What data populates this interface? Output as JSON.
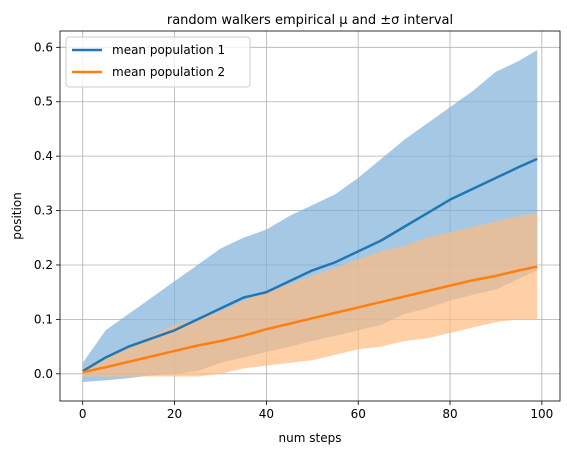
{
  "chart_data": {
    "type": "line",
    "title": "random walkers empirical μ and ±σ interval",
    "xlabel": "num steps",
    "ylabel": "position",
    "xlim": [
      -4.95,
      103.95
    ],
    "ylim": [
      -0.05,
      0.63
    ],
    "xticks": [
      0,
      20,
      40,
      60,
      80,
      100
    ],
    "yticks": [
      0.0,
      0.1,
      0.2,
      0.3,
      0.4,
      0.5,
      0.6
    ],
    "xtick_labels": [
      "0",
      "20",
      "40",
      "60",
      "80",
      "100"
    ],
    "ytick_labels": [
      "0.0",
      "0.1",
      "0.2",
      "0.3",
      "0.4",
      "0.5",
      "0.6"
    ],
    "grid": true,
    "legend_position": "top-left",
    "series": [
      {
        "name": "mean population 1",
        "color": "#1f77b4",
        "band_color": "#7fb0d8",
        "x": [
          0,
          5,
          10,
          15,
          20,
          25,
          30,
          35,
          40,
          45,
          50,
          55,
          60,
          65,
          70,
          75,
          80,
          85,
          90,
          95,
          99
        ],
        "mean": [
          0.005,
          0.03,
          0.05,
          0.065,
          0.08,
          0.1,
          0.12,
          0.14,
          0.15,
          0.17,
          0.19,
          0.205,
          0.225,
          0.245,
          0.27,
          0.295,
          0.32,
          0.34,
          0.36,
          0.38,
          0.395
        ],
        "upper": [
          0.02,
          0.08,
          0.11,
          0.14,
          0.17,
          0.2,
          0.23,
          0.25,
          0.265,
          0.29,
          0.31,
          0.33,
          0.36,
          0.395,
          0.43,
          0.46,
          0.49,
          0.52,
          0.555,
          0.575,
          0.595
        ],
        "lower": [
          -0.015,
          -0.012,
          -0.008,
          -0.003,
          0.0,
          0.005,
          0.02,
          0.03,
          0.04,
          0.05,
          0.06,
          0.07,
          0.08,
          0.09,
          0.11,
          0.12,
          0.135,
          0.145,
          0.155,
          0.175,
          0.19
        ]
      },
      {
        "name": "mean population 2",
        "color": "#ff7f0e",
        "band_color": "#ffbb80",
        "x": [
          0,
          5,
          10,
          15,
          20,
          25,
          30,
          35,
          40,
          45,
          50,
          55,
          60,
          65,
          70,
          75,
          80,
          85,
          90,
          95,
          99
        ],
        "mean": [
          0.003,
          0.012,
          0.022,
          0.032,
          0.042,
          0.052,
          0.06,
          0.07,
          0.082,
          0.092,
          0.102,
          0.112,
          0.122,
          0.132,
          0.142,
          0.152,
          0.162,
          0.172,
          0.18,
          0.19,
          0.197
        ],
        "upper": [
          0.01,
          0.03,
          0.05,
          0.07,
          0.09,
          0.1,
          0.115,
          0.135,
          0.15,
          0.165,
          0.18,
          0.195,
          0.21,
          0.225,
          0.235,
          0.25,
          0.26,
          0.27,
          0.28,
          0.29,
          0.295
        ],
        "lower": [
          -0.005,
          -0.005,
          -0.005,
          -0.005,
          -0.005,
          -0.005,
          0.0,
          0.01,
          0.015,
          0.02,
          0.025,
          0.035,
          0.045,
          0.05,
          0.06,
          0.065,
          0.075,
          0.085,
          0.095,
          0.1,
          0.1
        ]
      }
    ]
  }
}
